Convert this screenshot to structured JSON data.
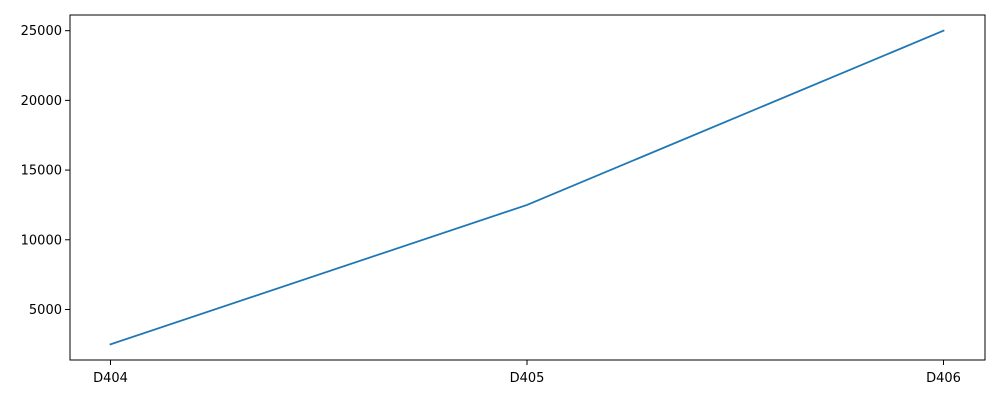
{
  "chart_data": {
    "type": "line",
    "title": "",
    "xlabel": "",
    "ylabel": "",
    "categories": [
      "D404",
      "D405",
      "D406"
    ],
    "series": [
      {
        "values": [
          2500,
          12500,
          25000
        ],
        "color": "#1f77b4"
      }
    ],
    "yticks": [
      5000,
      10000,
      15000,
      20000,
      25000
    ],
    "ytick_labels": [
      "5000",
      "10000",
      "15000",
      "20000",
      "25000"
    ],
    "ylim": [
      1375,
      26125
    ],
    "grid": false,
    "legend": "none"
  }
}
